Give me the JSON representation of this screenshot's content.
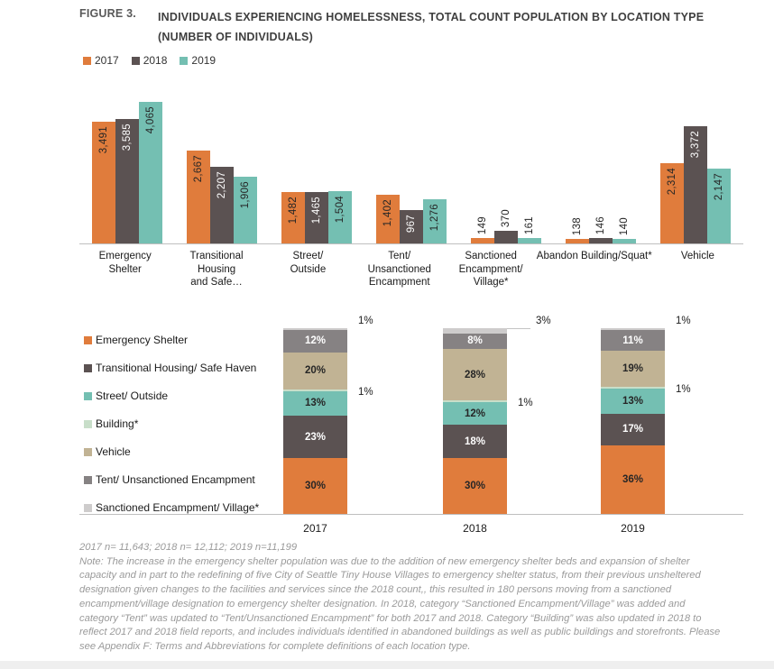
{
  "figure": {
    "label": "FIGURE 3.",
    "title_line1": "INDIVIDUALS EXPERIENCING HOMELESSNESS, TOTAL COUNT POPULATION BY LOCATION TYPE",
    "title_line2": "(NUMBER OF INDIVIDUALS)"
  },
  "colors": {
    "orange": "#E07C3C",
    "charcoal": "#5B5252",
    "teal": "#74BFB2",
    "mint": "#C8DEC9",
    "tan": "#C1B394",
    "gray_medium": "#868283",
    "gray_light": "#CECCCC",
    "axis_line": "#BFBFBF",
    "title_text": "#3F3F3F",
    "figure_label_text": "#595959",
    "category_text": "#1A1A1A",
    "note_text": "#9A9A9A",
    "label_dark": "#262626",
    "label_light": "#FFFFFF"
  },
  "chart_data": [
    {
      "type": "bar",
      "title": "Individuals experiencing homelessness, total count population by location type (number of individuals)",
      "grid": false,
      "legend_position": "top-left",
      "ylim": [
        0,
        4500
      ],
      "categories": [
        {
          "label": "Emergency Shelter",
          "lines": [
            "Emergency",
            "Shelter"
          ]
        },
        {
          "label": "Transitional Housing and Safe…",
          "lines": [
            "Transitional",
            "Housing",
            "and Safe…"
          ]
        },
        {
          "label": "Street/ Outside",
          "lines": [
            "Street/",
            "Outside"
          ]
        },
        {
          "label": "Tent/ Unsanctioned Encampment",
          "lines": [
            "Tent/",
            "Unsanctioned",
            "Encampment"
          ]
        },
        {
          "label": "Sanctioned Encampment/ Village*",
          "lines": [
            "Sanctioned",
            "Encampment/",
            "Village*"
          ]
        },
        {
          "label": "Abandon Building/Squat*",
          "lines": [
            "Abandon Building/Squat*"
          ]
        },
        {
          "label": "Vehicle",
          "lines": [
            "Vehicle"
          ]
        }
      ],
      "series": [
        {
          "name": "2017",
          "color_key": "orange",
          "values": [
            3491,
            2667,
            1482,
            1402,
            149,
            138,
            2314
          ]
        },
        {
          "name": "2018",
          "color_key": "charcoal",
          "values": [
            3585,
            2207,
            1465,
            967,
            370,
            146,
            3372
          ]
        },
        {
          "name": "2019",
          "color_key": "teal",
          "values": [
            4065,
            1906,
            1504,
            1276,
            161,
            140,
            2147
          ]
        }
      ]
    },
    {
      "type": "stacked-bar-percent",
      "title": "Share of total count population by location type (percent)",
      "grid": false,
      "legend_position": "left",
      "unit": "%",
      "ylim": [
        0,
        100
      ],
      "categories": [
        "2017",
        "2018",
        "2019"
      ],
      "series": [
        {
          "name": "Emergency Shelter",
          "color_key": "orange",
          "values": [
            30,
            30,
            36
          ]
        },
        {
          "name": "Transitional Housing/ Safe Haven",
          "color_key": "charcoal",
          "values": [
            23,
            18,
            17
          ]
        },
        {
          "name": "Street/ Outside",
          "color_key": "teal",
          "values": [
            13,
            12,
            13
          ]
        },
        {
          "name": "Building*",
          "color_key": "mint",
          "values": [
            1,
            1,
            1
          ]
        },
        {
          "name": "Vehicle",
          "color_key": "tan",
          "values": [
            20,
            28,
            19
          ]
        },
        {
          "name": "Tent/ Unsanctioned Encampment",
          "color_key": "gray_medium",
          "values": [
            12,
            8,
            11
          ]
        },
        {
          "name": "Sanctioned Encampment/ Village*",
          "color_key": "gray_light",
          "values": [
            1,
            3,
            1
          ]
        }
      ]
    }
  ],
  "notes": {
    "sample_sizes": "2017 n= 11,643; 2018 n= 12,112; 2019 n=11,199",
    "note_text": "Note: The increase in the emergency shelter population was due to the addition of new emergency shelter beds and expansion of shelter capacity and in part to the redefining of five City of Seattle Tiny House Villages to emergency shelter status, from their previous unsheltered designation given changes to the facilities and services since the 2018 count,, this resulted in 180 persons moving from a sanctioned encampment/village designation to emergency shelter designation. In 2018, category “Sanctioned Encampment/Village” was added and category “Tent” was updated to “Tent/Unsanctioned Encampment” for both 2017 and 2018. Category “Building” was also updated in 2018 to reflect 2017 and 2018 field reports, and includes individuals identified in abandoned buildings as well as public buildings and storefronts. Please see Appendix F: Terms and Abbreviations for complete definitions of each location type."
  }
}
